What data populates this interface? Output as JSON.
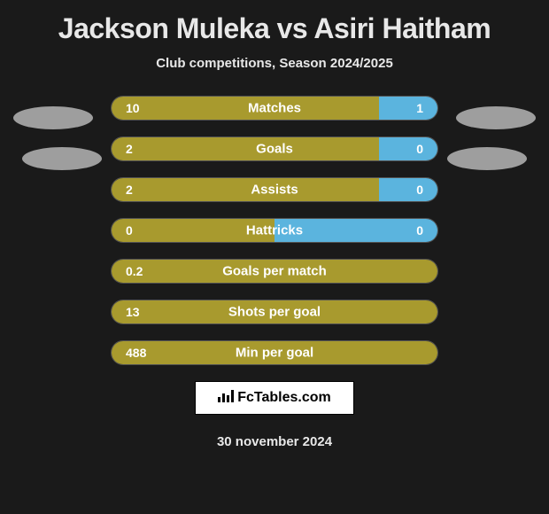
{
  "title": "Jackson Muleka vs Asiri Haitham",
  "subtitle": "Club competitions, Season 2024/2025",
  "colors": {
    "background": "#1a1a1a",
    "text": "#ffffff",
    "player1_bar": "#a89a2e",
    "player2_bar": "#5bb4de",
    "ellipse": "#9e9e9e",
    "bar_border": "rgba(255,255,255,0.25)"
  },
  "stats": [
    {
      "label": "Matches",
      "left_value": "10",
      "right_value": "1",
      "left_pct": 82,
      "right_pct": 18
    },
    {
      "label": "Goals",
      "left_value": "2",
      "right_value": "0",
      "left_pct": 82,
      "right_pct": 18
    },
    {
      "label": "Assists",
      "left_value": "2",
      "right_value": "0",
      "left_pct": 82,
      "right_pct": 18
    },
    {
      "label": "Hattricks",
      "left_value": "0",
      "right_value": "0",
      "left_pct": 50,
      "right_pct": 50
    },
    {
      "label": "Goals per match",
      "left_value": "0.2",
      "right_value": "",
      "left_pct": 100,
      "right_pct": 0
    },
    {
      "label": "Shots per goal",
      "left_value": "13",
      "right_value": "",
      "left_pct": 100,
      "right_pct": 0
    },
    {
      "label": "Min per goal",
      "left_value": "488",
      "right_value": "",
      "left_pct": 100,
      "right_pct": 0
    }
  ],
  "footer": {
    "logo_text": "FcTables.com",
    "date": "30 november 2024"
  }
}
